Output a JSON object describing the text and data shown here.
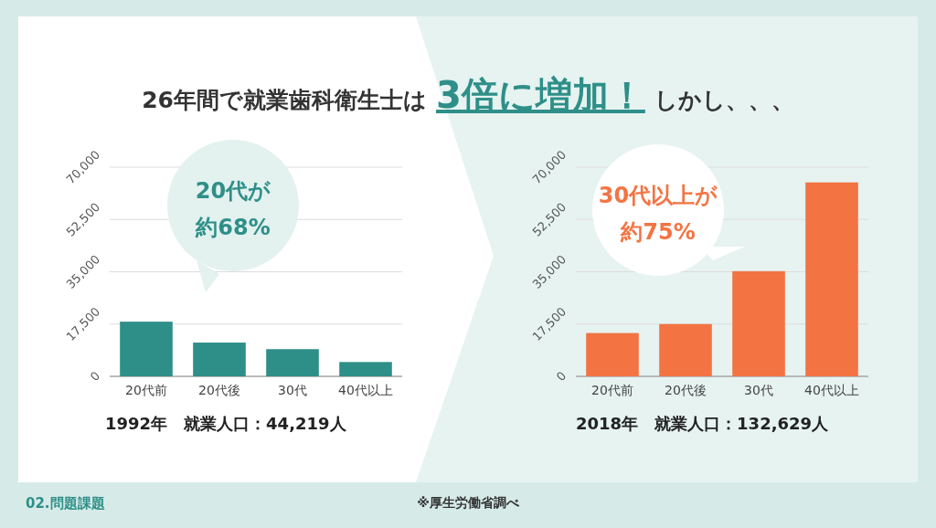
{
  "chart_data": [
    {
      "type": "bar",
      "categories": [
        "20代前",
        "20代後",
        "30代",
        "40代以上"
      ],
      "series": [
        {
          "color": "#2e8f88",
          "values": [
            18300,
            11300,
            9100,
            4800
          ]
        }
      ],
      "ylim": [
        0,
        70000
      ],
      "yticks": [
        0,
        {
          "value": 17500,
          "label": "17,500"
        },
        {
          "value": 35000,
          "label": "35,000"
        },
        {
          "value": 52500,
          "label": "52,500"
        },
        {
          "value": 70000,
          "label": "70,000"
        }
      ],
      "grid": "y",
      "annotations": [
        "26年間で就業歯科衛生士は",
        "3倍に増加！",
        "しかし、、、",
        "20代が",
        "約68%",
        "1992年　就業人口：44,219人",
        "02.問題課題",
        "※厚生労働省調べ"
      ]
    },
    {
      "type": "bar",
      "categories": [
        "20代前",
        "20代後",
        "30代",
        "40代以上"
      ],
      "series": [
        {
          "color": "#f37442",
          "values": [
            14500,
            17500,
            35200,
            64900
          ]
        }
      ],
      "ylim": [
        0,
        70000
      ],
      "yticks": [
        0,
        {
          "value": 17500,
          "label": "17,500"
        },
        {
          "value": 35000,
          "label": "35,000"
        },
        {
          "value": 52500,
          "label": "52,500"
        },
        {
          "value": 70000,
          "label": "70,000"
        }
      ],
      "grid": "y",
      "annotations": [
        "30代以上が",
        "約75%",
        "2018年　就業人口：132,629人"
      ]
    }
  ]
}
